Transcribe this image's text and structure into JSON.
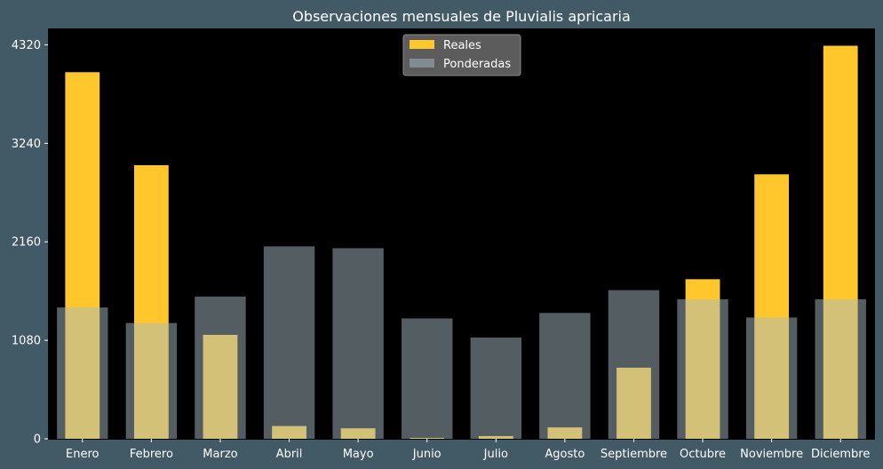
{
  "chart_data": {
    "type": "bar",
    "title": "Observaciones mensuales de Pluvialis apricaria",
    "xlabel": "",
    "ylabel": "",
    "categories": [
      "Enero",
      "Febrero",
      "Marzo",
      "Abril",
      "Mayo",
      "Junio",
      "Julio",
      "Agosto",
      "Septiembre",
      "Octubre",
      "Noviembre",
      "Diciembre"
    ],
    "series": [
      {
        "name": "Reales",
        "color": "#ffc72c",
        "values": [
          4020,
          3000,
          1140,
          140,
          115,
          10,
          30,
          125,
          780,
          1750,
          2900,
          4310
        ]
      },
      {
        "name": "Ponderadas",
        "color": "#a8bcc4",
        "values": [
          1440,
          1270,
          1560,
          2110,
          2090,
          1320,
          1110,
          1380,
          1630,
          1530,
          1330,
          1530
        ]
      }
    ],
    "ylim": [
      0,
      4500
    ],
    "yticks": [
      "0",
      "1080",
      "2160",
      "3240",
      "4320"
    ],
    "legend": "top-center",
    "grid": false,
    "plot_background": "#000000",
    "page_background": "#425a66"
  }
}
